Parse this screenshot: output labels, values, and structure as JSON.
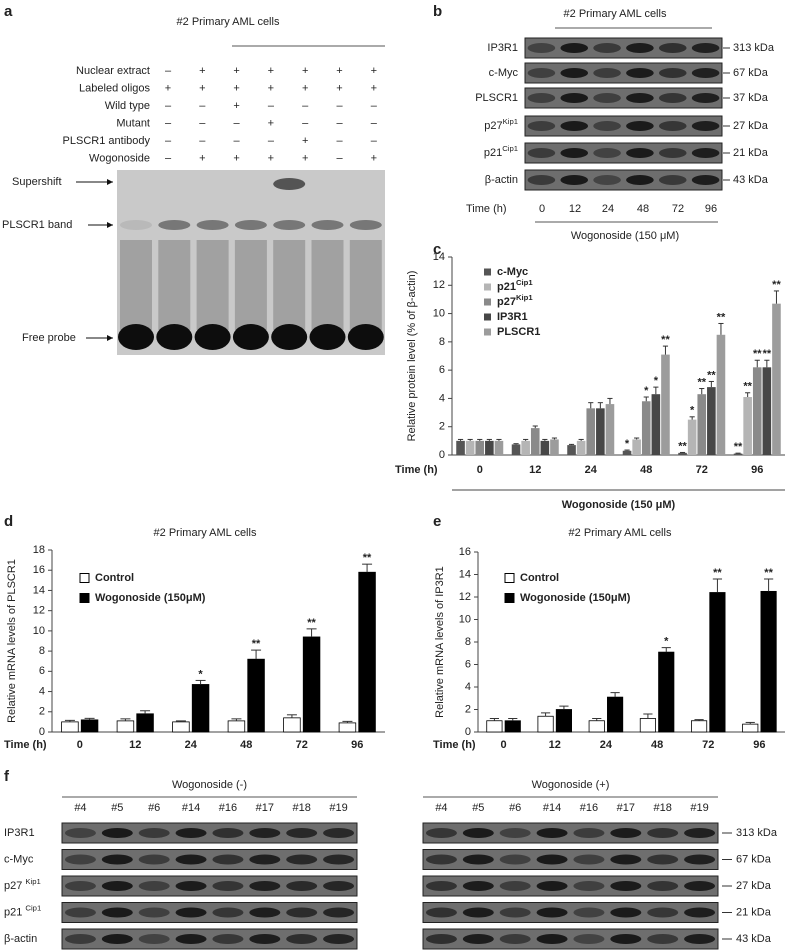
{
  "panel_a": {
    "label": "a",
    "title": "#2 Primary  AML cells",
    "rows": [
      {
        "label": "Nuclear extract",
        "signs": [
          "–",
          "+",
          "+",
          "+",
          "+",
          "+",
          "+"
        ]
      },
      {
        "label": "Labeled oligos",
        "signs": [
          "+",
          "+",
          "+",
          "+",
          "+",
          "+",
          "+"
        ]
      },
      {
        "label": "Wild type",
        "signs": [
          "–",
          "–",
          "+",
          "–",
          "–",
          "–",
          "–"
        ]
      },
      {
        "label": "Mutant",
        "signs": [
          "–",
          "–",
          "–",
          "+",
          "–",
          "–",
          "–"
        ]
      },
      {
        "label": "PLSCR1 antibody",
        "signs": [
          "–",
          "–",
          "–",
          "–",
          "+",
          "–",
          "–"
        ]
      },
      {
        "label": "Wogonoside",
        "signs": [
          "–",
          "+",
          "+",
          "+",
          "+",
          "–",
          "+"
        ]
      }
    ],
    "band_labels": [
      "Supershift",
      "PLSCR1 band",
      "Free probe"
    ]
  },
  "panel_b": {
    "label": "b",
    "title": "#2 Primary AML cells",
    "proteins": [
      {
        "name": "IP3R1",
        "size": "313 kDa"
      },
      {
        "name": "c-Myc",
        "size": "67  kDa"
      },
      {
        "name": "PLSCR1",
        "size": "37 kDa"
      },
      {
        "name": "p27",
        "sup": "Kip1",
        "size": "27 kDa"
      },
      {
        "name": "p21",
        "sup": "Cip1",
        "size": "21 kDa"
      },
      {
        "name": "β-actin",
        "size": "43 kDa"
      }
    ],
    "time_label": "Time (h)",
    "times": [
      "0",
      "12",
      "24",
      "48",
      "72",
      "96"
    ],
    "treatment": "Wogonoside (150 μM)"
  },
  "chart_data": [
    {
      "type": "bar",
      "panel_label": "c",
      "ylabel": "Relative protein level (% of β-actin)",
      "x_label": "Time (h)",
      "treatment": "Wogonoside (150 μM)",
      "categories": [
        "0",
        "12",
        "24",
        "48",
        "72",
        "96"
      ],
      "ylim": [
        0,
        14
      ],
      "yticks": [
        0,
        2,
        4,
        6,
        8,
        10,
        12,
        14
      ],
      "series": [
        {
          "name": "c-Myc",
          "color": "#555555",
          "values": [
            1.0,
            0.75,
            0.7,
            0.3,
            0.15,
            0.1
          ],
          "errors": [
            0.1,
            0.05,
            0.05,
            0.05,
            0.03,
            0.03
          ],
          "significance": [
            null,
            null,
            null,
            "*",
            "**",
            "**"
          ]
        },
        {
          "name": "p21",
          "sup": "Cip1",
          "color": "#b5b5b5",
          "values": [
            1.0,
            1.0,
            1.0,
            1.1,
            2.5,
            4.1
          ],
          "errors": [
            0.1,
            0.1,
            0.1,
            0.1,
            0.2,
            0.3
          ],
          "significance": [
            null,
            null,
            null,
            null,
            "*",
            "**"
          ]
        },
        {
          "name": "p27",
          "sup": "Kip1",
          "color": "#8a8a8a",
          "values": [
            1.0,
            1.9,
            3.3,
            3.8,
            4.3,
            6.2
          ],
          "errors": [
            0.1,
            0.15,
            0.4,
            0.3,
            0.4,
            0.5
          ],
          "significance": [
            null,
            null,
            null,
            "*",
            "**",
            "**"
          ]
        },
        {
          "name": "IP3R1",
          "color": "#474747",
          "values": [
            1.0,
            1.0,
            3.3,
            4.3,
            4.8,
            6.2
          ],
          "errors": [
            0.1,
            0.1,
            0.4,
            0.5,
            0.4,
            0.5
          ],
          "significance": [
            null,
            null,
            null,
            "*",
            "**",
            "**"
          ]
        },
        {
          "name": "PLSCR1",
          "color": "#9c9c9c",
          "values": [
            1.0,
            1.1,
            3.6,
            7.1,
            8.5,
            10.7
          ],
          "errors": [
            0.1,
            0.1,
            0.4,
            0.6,
            0.8,
            0.9
          ],
          "significance": [
            null,
            null,
            null,
            "**",
            "**",
            "**"
          ]
        }
      ]
    },
    {
      "type": "bar",
      "panel_label": "d",
      "title": "#2 Primary AML cells",
      "ylabel": "Relative mRNA levels of PLSCR1",
      "x_label": "Time (h)",
      "categories": [
        "0",
        "12",
        "24",
        "48",
        "72",
        "96"
      ],
      "ylim": [
        0,
        18
      ],
      "yticks": [
        0,
        2,
        4,
        6,
        8,
        10,
        12,
        14,
        16,
        18
      ],
      "series": [
        {
          "name": "Control",
          "color": "#ffffff",
          "values": [
            1.0,
            1.1,
            1.0,
            1.1,
            1.4,
            0.9
          ],
          "errors": [
            0.15,
            0.2,
            0.1,
            0.2,
            0.3,
            0.15
          ],
          "significance": [
            null,
            null,
            null,
            null,
            null,
            null
          ]
        },
        {
          "name": "Wogonoside (150μM)",
          "color": "#000000",
          "values": [
            1.2,
            1.8,
            4.7,
            7.2,
            9.4,
            15.8
          ],
          "errors": [
            0.15,
            0.3,
            0.4,
            0.9,
            0.8,
            0.8
          ],
          "significance": [
            null,
            null,
            "*",
            "**",
            "**",
            "**"
          ]
        }
      ]
    },
    {
      "type": "bar",
      "panel_label": "e",
      "title": "#2 Primary AML cells",
      "ylabel": "Relative mRNA levels of IP3R1",
      "x_label": "Time (h)",
      "categories": [
        "0",
        "12",
        "24",
        "48",
        "72",
        "96"
      ],
      "ylim": [
        0,
        16
      ],
      "yticks": [
        0,
        2,
        4,
        6,
        8,
        10,
        12,
        14,
        16
      ],
      "series": [
        {
          "name": "Control",
          "color": "#ffffff",
          "values": [
            1.0,
            1.4,
            1.0,
            1.2,
            1.0,
            0.7
          ],
          "errors": [
            0.2,
            0.3,
            0.2,
            0.4,
            0.1,
            0.15
          ],
          "significance": [
            null,
            null,
            null,
            null,
            null,
            null
          ]
        },
        {
          "name": "Wogonoside (150μM)",
          "color": "#000000",
          "values": [
            1.0,
            2.0,
            3.1,
            7.1,
            12.4,
            12.5
          ],
          "errors": [
            0.2,
            0.3,
            0.4,
            0.4,
            1.2,
            1.1
          ],
          "significance": [
            null,
            null,
            null,
            "*",
            "**",
            "**"
          ]
        }
      ]
    }
  ],
  "panel_f": {
    "label": "f",
    "proteins": [
      {
        "name": "IP3R1"
      },
      {
        "name": "c-Myc"
      },
      {
        "name": "p27 ",
        "sup": "Kip1"
      },
      {
        "name": "p21 ",
        "sup": "Cip1"
      },
      {
        "name": "β-actin"
      }
    ],
    "groups": [
      {
        "title": "Wogonoside (-)",
        "samples": [
          "#4",
          "#5",
          "#6",
          "#14",
          "#16",
          "#17",
          "#18",
          "#19"
        ]
      },
      {
        "title": "Wogonoside (+)",
        "samples": [
          "#4",
          "#5",
          "#6",
          "#14",
          "#16",
          "#17",
          "#18",
          "#19"
        ],
        "sizes": [
          "313 kDa",
          "67  kDa",
          "27 kDa",
          "21 kDa",
          "43 kDa"
        ]
      }
    ]
  }
}
